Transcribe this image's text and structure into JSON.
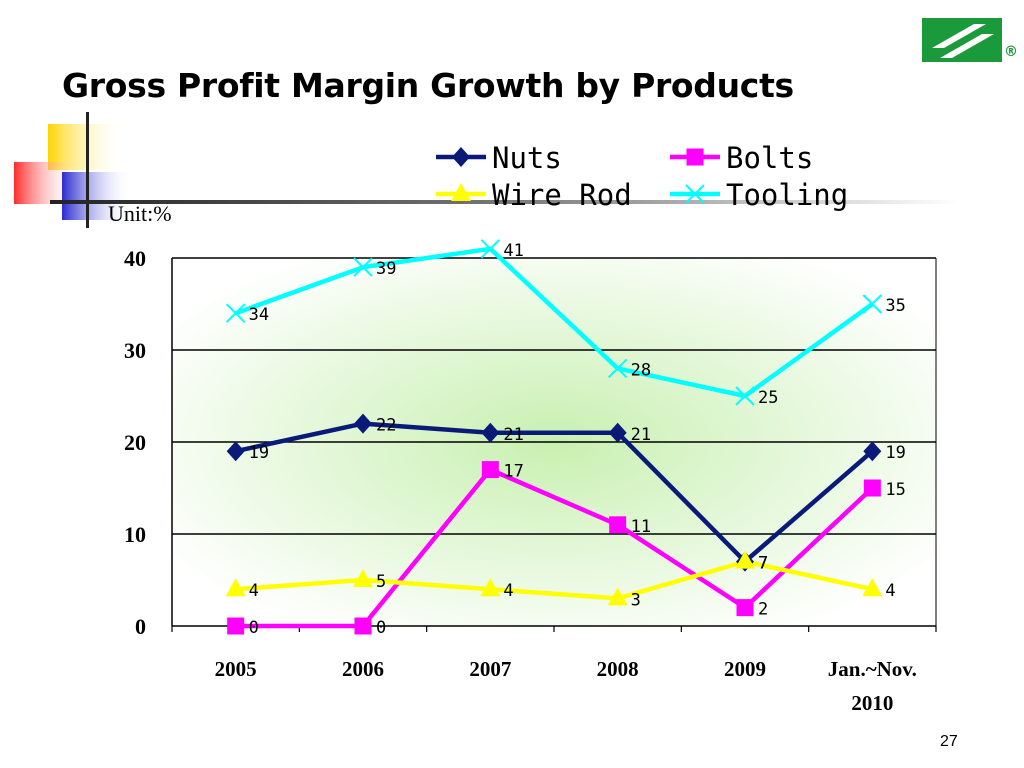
{
  "slide": {
    "title": "Gross Profit Margin Growth by Products",
    "page_number": "27",
    "unit_label": "Unit:%"
  },
  "colors": {
    "brand_green": "#1a9a3a",
    "grid": "#000000"
  },
  "chart_data": {
    "type": "line",
    "categories": [
      "2005",
      "2006",
      "2007",
      "2008",
      "2009",
      "Jan.~Nov. 2010"
    ],
    "category_labels": [
      [
        "2005"
      ],
      [
        "2006"
      ],
      [
        "2007"
      ],
      [
        "2008"
      ],
      [
        "2009"
      ],
      [
        "Jan.~Nov.",
        "2010"
      ]
    ],
    "ylim": [
      0,
      40
    ],
    "yticks": [
      "0",
      "10",
      "20",
      "30",
      "40"
    ],
    "grid": true,
    "legend_position": "top",
    "series": [
      {
        "name": "Nuts",
        "color": "#0a1a78",
        "marker": "diamond",
        "values": [
          19,
          22,
          21,
          21,
          7,
          19
        ]
      },
      {
        "name": "Bolts",
        "color": "#ff00ff",
        "marker": "square",
        "values": [
          0,
          0,
          17,
          11,
          2,
          15
        ]
      },
      {
        "name": "Wire Rod",
        "color": "#ffff00",
        "marker": "triangle",
        "values": [
          4,
          5,
          4,
          3,
          7,
          4
        ]
      },
      {
        "name": "Tooling",
        "color": "#00ffff",
        "marker": "x",
        "values": [
          34,
          39,
          41,
          28,
          25,
          35
        ]
      }
    ]
  }
}
